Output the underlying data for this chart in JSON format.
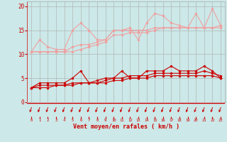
{
  "xlabel": "Vent moyen/en rafales ( km/h )",
  "xlabel_color": "#cc0000",
  "bg_color": "#cce8e8",
  "grid_color": "#aaaaaa",
  "axis_color": "#cc0000",
  "tick_color": "#cc0000",
  "x_ticks": [
    0,
    1,
    2,
    3,
    4,
    5,
    6,
    7,
    8,
    9,
    10,
    11,
    12,
    13,
    14,
    15,
    16,
    17,
    18,
    19,
    20,
    21,
    22,
    23
  ],
  "y_ticks": [
    0,
    5,
    10,
    15,
    20
  ],
  "ylim": [
    0,
    21
  ],
  "xlim": [
    -0.5,
    23.5
  ],
  "lines_light": [
    [
      10.5,
      13.0,
      11.5,
      11.0,
      11.0,
      15.0,
      16.5,
      15.0,
      13.0,
      13.0,
      15.0,
      15.0,
      15.5,
      13.0,
      16.5,
      18.5,
      18.0,
      16.5,
      16.0,
      15.5,
      18.5,
      15.5,
      19.5,
      16.0
    ],
    [
      10.5,
      10.5,
      10.5,
      10.5,
      10.5,
      11.5,
      12.0,
      12.0,
      12.5,
      13.0,
      15.0,
      15.0,
      15.0,
      15.0,
      15.0,
      15.5,
      15.5,
      15.5,
      15.5,
      15.5,
      15.5,
      15.5,
      15.5,
      16.0
    ],
    [
      10.5,
      10.5,
      10.5,
      10.5,
      10.5,
      10.5,
      11.0,
      11.5,
      12.0,
      12.5,
      14.0,
      14.0,
      14.5,
      14.5,
      14.5,
      15.0,
      15.5,
      15.5,
      15.5,
      15.5,
      15.5,
      15.5,
      15.5,
      15.5
    ]
  ],
  "lines_dark": [
    [
      3.0,
      4.0,
      4.0,
      4.0,
      4.0,
      5.0,
      6.5,
      4.0,
      4.0,
      4.5,
      5.0,
      6.5,
      5.0,
      5.0,
      6.5,
      6.5,
      6.5,
      7.5,
      6.5,
      6.5,
      6.5,
      7.5,
      6.5,
      5.0
    ],
    [
      3.0,
      3.5,
      3.5,
      3.5,
      3.5,
      4.0,
      4.0,
      4.0,
      4.5,
      5.0,
      5.0,
      5.0,
      5.5,
      5.5,
      5.5,
      6.0,
      6.0,
      6.0,
      6.0,
      6.0,
      6.0,
      6.5,
      6.0,
      5.5
    ],
    [
      3.0,
      3.0,
      3.0,
      3.5,
      3.5,
      3.5,
      4.0,
      4.0,
      4.0,
      4.0,
      4.5,
      4.5,
      5.0,
      5.0,
      5.0,
      5.5,
      5.5,
      5.5,
      5.5,
      5.5,
      5.5,
      5.5,
      5.5,
      5.0
    ]
  ],
  "light_color": "#f0a0a0",
  "dark_color": "#cc0000",
  "arrow_color": "#cc0000"
}
